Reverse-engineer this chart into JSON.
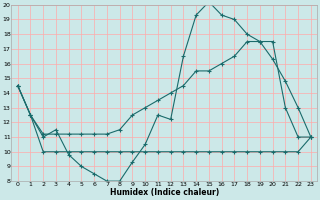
{
  "xlabel": "Humidex (Indice chaleur)",
  "bg_color": "#cce8e8",
  "line_color": "#1a6b6b",
  "grid_color": "#ffaaaa",
  "xlim": [
    -0.5,
    23.5
  ],
  "ylim": [
    8,
    20
  ],
  "yticks": [
    8,
    9,
    10,
    11,
    12,
    13,
    14,
    15,
    16,
    17,
    18,
    19,
    20
  ],
  "xticks": [
    0,
    1,
    2,
    3,
    4,
    5,
    6,
    7,
    8,
    9,
    10,
    11,
    12,
    13,
    14,
    15,
    16,
    17,
    18,
    19,
    20,
    21,
    22,
    23
  ],
  "line1_x": [
    0,
    1,
    2,
    3,
    4,
    5,
    6,
    7,
    8,
    9,
    10,
    11,
    12,
    13,
    14,
    15,
    16,
    17,
    18,
    19,
    20,
    21,
    22,
    23
  ],
  "line1_y": [
    14.5,
    12.5,
    11.0,
    11.5,
    9.8,
    9.0,
    8.5,
    8.0,
    8.0,
    9.3,
    10.5,
    12.5,
    12.2,
    16.5,
    19.3,
    20.2,
    19.3,
    19.0,
    18.0,
    17.5,
    16.3,
    14.8,
    13.0,
    11.0
  ],
  "line2_x": [
    0,
    1,
    2,
    3,
    4,
    5,
    6,
    7,
    8,
    9,
    10,
    11,
    12,
    13,
    14,
    15,
    16,
    17,
    18,
    19,
    20,
    21,
    22,
    23
  ],
  "line2_y": [
    14.5,
    12.5,
    11.2,
    11.2,
    11.2,
    11.2,
    11.2,
    11.2,
    11.5,
    12.5,
    13.0,
    13.5,
    14.0,
    14.5,
    15.5,
    15.5,
    16.0,
    16.5,
    17.5,
    17.5,
    17.5,
    13.0,
    11.0,
    11.0
  ],
  "line3_x": [
    0,
    1,
    2,
    3,
    4,
    5,
    6,
    7,
    8,
    9,
    10,
    11,
    12,
    13,
    14,
    15,
    16,
    17,
    18,
    19,
    20,
    21,
    22,
    23
  ],
  "line3_y": [
    14.5,
    12.5,
    10.0,
    10.0,
    10.0,
    10.0,
    10.0,
    10.0,
    10.0,
    10.0,
    10.0,
    10.0,
    10.0,
    10.0,
    10.0,
    10.0,
    10.0,
    10.0,
    10.0,
    10.0,
    10.0,
    10.0,
    10.0,
    11.0
  ]
}
